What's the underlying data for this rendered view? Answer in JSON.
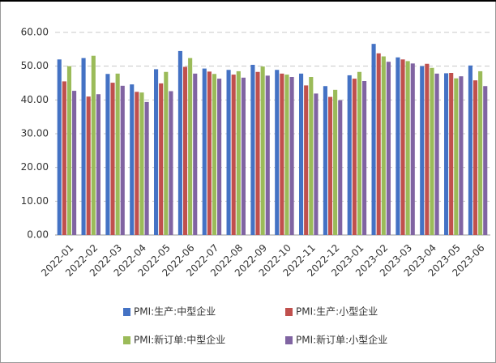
{
  "chart_data": {
    "type": "bar",
    "categories": [
      "2022-01",
      "2022-02",
      "2022-03",
      "2022-04",
      "2022-05",
      "2022-06",
      "2022-07",
      "2022-08",
      "2022-09",
      "2022-10",
      "2022-11",
      "2022-12",
      "2023-01",
      "2023-02",
      "2023-03",
      "2023-04",
      "2023-05",
      "2023-06"
    ],
    "series": [
      {
        "name": "PMI:生产:中型企业",
        "color": "#4472c4",
        "values": [
          52.0,
          52.4,
          47.7,
          44.6,
          49.1,
          54.5,
          49.3,
          48.9,
          50.4,
          48.9,
          47.8,
          44.1,
          47.3,
          56.6,
          52.6,
          50.0,
          47.9,
          50.2
        ]
      },
      {
        "name": "PMI:生产:小型企业",
        "color": "#c0504d",
        "values": [
          45.5,
          41.0,
          45.1,
          42.4,
          44.9,
          49.8,
          48.4,
          47.5,
          48.3,
          47.8,
          44.3,
          40.9,
          46.3,
          53.8,
          52.0,
          50.7,
          48.0,
          45.8
        ]
      },
      {
        "name": "PMI:新订单:中型企业",
        "color": "#9bbb59",
        "values": [
          50.0,
          53.1,
          47.8,
          42.2,
          48.3,
          52.4,
          47.7,
          48.5,
          49.9,
          47.5,
          46.8,
          43.0,
          48.3,
          52.9,
          51.5,
          49.5,
          46.4,
          48.5
        ]
      },
      {
        "name": "PMI:新订单:小型企业",
        "color": "#8064a2",
        "values": [
          42.7,
          41.7,
          44.2,
          39.4,
          42.6,
          47.8,
          46.3,
          46.6,
          47.2,
          46.8,
          41.9,
          39.9,
          45.6,
          51.3,
          50.8,
          47.8,
          47.0,
          44.1
        ]
      }
    ],
    "ylim": [
      0,
      60
    ],
    "yticks": [
      {
        "value": 0,
        "label": "0.00"
      },
      {
        "value": 10,
        "label": "10.00"
      },
      {
        "value": 20,
        "label": "20.00"
      },
      {
        "value": 30,
        "label": "30.00"
      },
      {
        "value": 40,
        "label": "40.00"
      },
      {
        "value": 50,
        "label": "50.00"
      },
      {
        "value": 60,
        "label": "60.00"
      }
    ],
    "grid": true,
    "legend": "bottom"
  }
}
